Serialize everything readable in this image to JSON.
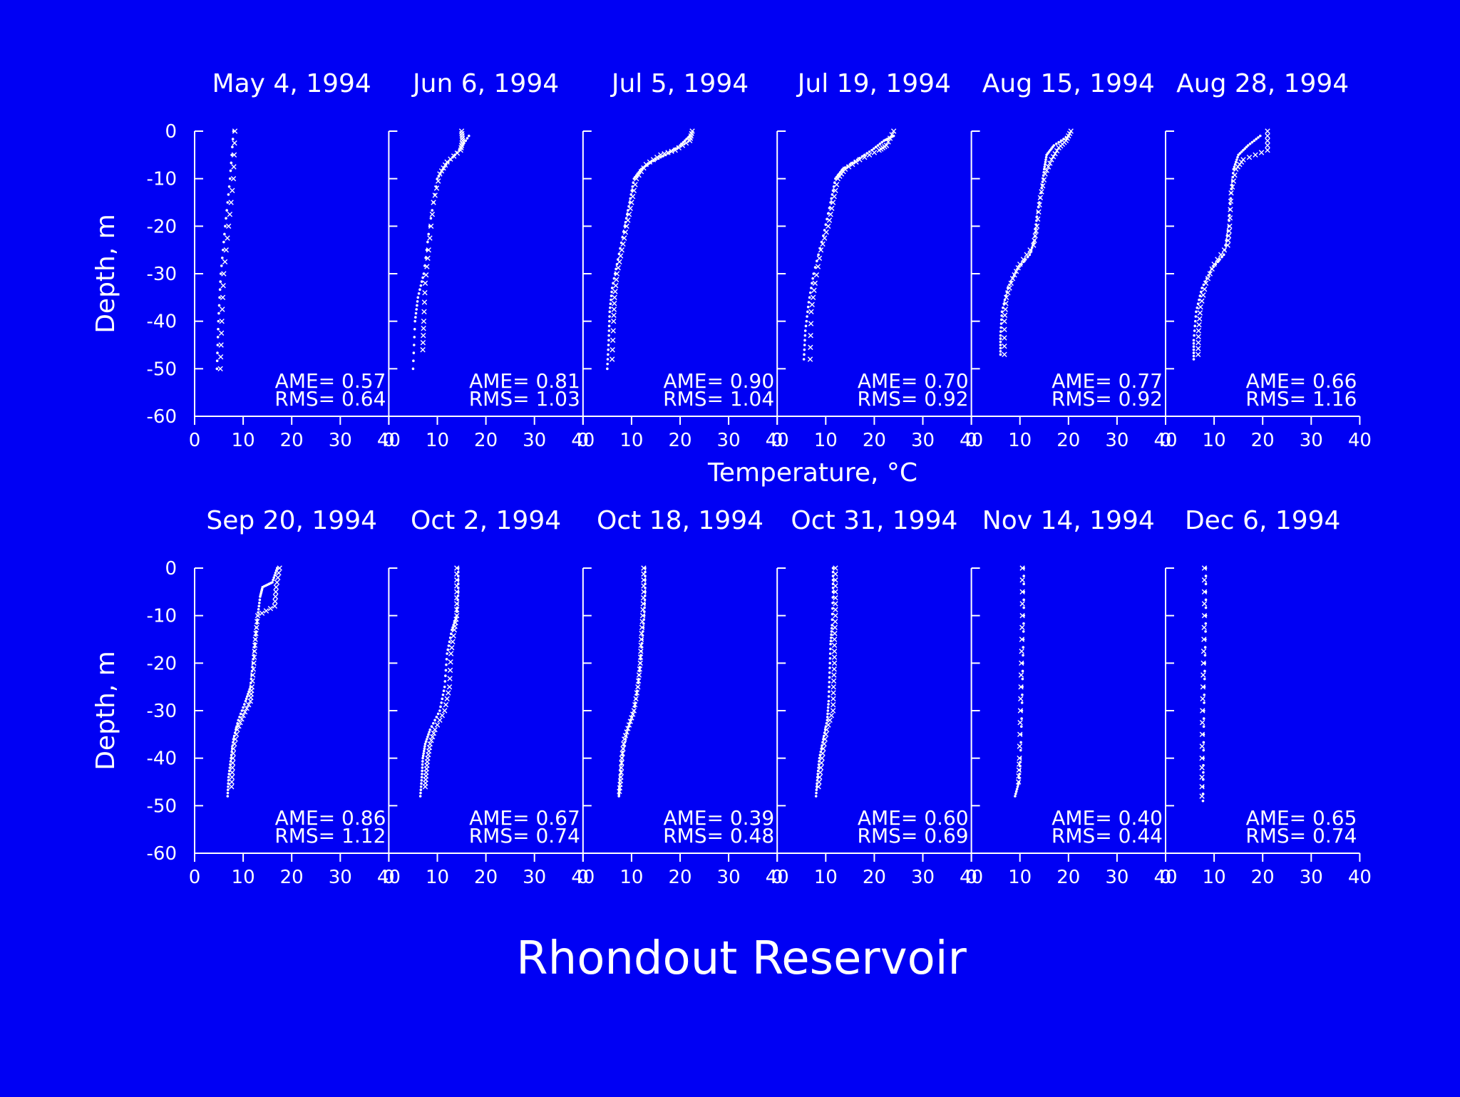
{
  "page_title": "Rhondout Reservoir",
  "colors": {
    "background": "#0000f4",
    "foreground": "#ffffff"
  },
  "chart_data": {
    "type": "scatter",
    "title": "Rhondout Reservoir",
    "xlabel": "Temperature, °C",
    "ylabel": "Depth, m",
    "xlim": [
      0,
      40
    ],
    "ylim": [
      -60,
      0
    ],
    "xticks": [
      "0",
      "10",
      "20",
      "30",
      "40"
    ],
    "yticks": [
      "0",
      "-10",
      "-20",
      "-30",
      "-40",
      "-50",
      "-60"
    ],
    "grid": false,
    "markers": {
      "observed": "x",
      "simulated": "dotted line"
    },
    "panels": [
      {
        "title": "May  4, 1994",
        "ame": "AME= 0.57",
        "rms": "RMS= 0.64",
        "observed": [
          [
            8.3,
            0
          ],
          [
            8,
            -10
          ],
          [
            7,
            -20
          ],
          [
            6,
            -30
          ],
          [
            5.6,
            -40
          ],
          [
            5.3,
            -50
          ]
        ],
        "simulated": [
          [
            8,
            0
          ],
          [
            7.3,
            -10
          ],
          [
            6.3,
            -20
          ],
          [
            5.4,
            -30
          ],
          [
            4.9,
            -40
          ],
          [
            4.6,
            -50
          ]
        ]
      },
      {
        "title": "Jun  6, 1994",
        "ame": "AME= 0.81",
        "rms": "RMS= 1.03",
        "observed": [
          [
            15,
            0
          ],
          [
            15.2,
            -2
          ],
          [
            14.8,
            -4
          ],
          [
            12,
            -6.5
          ],
          [
            10.5,
            -9
          ],
          [
            9.2,
            -15
          ],
          [
            8.2,
            -25
          ],
          [
            7.5,
            -32
          ],
          [
            7.2,
            -40
          ],
          [
            7,
            -46
          ]
        ],
        "simulated": [
          [
            16.5,
            -1
          ],
          [
            14.5,
            -4
          ],
          [
            11.8,
            -7
          ],
          [
            10,
            -10
          ],
          [
            8.4,
            -20
          ],
          [
            7.2,
            -30
          ],
          [
            6,
            -35
          ],
          [
            5.4,
            -40
          ],
          [
            5,
            -50
          ]
        ]
      },
      {
        "title": "Jul  5, 1994",
        "ame": "AME= 0.90",
        "rms": "RMS= 1.04",
        "observed": [
          [
            22.5,
            0
          ],
          [
            22,
            -2
          ],
          [
            19,
            -4
          ],
          [
            16,
            -5
          ],
          [
            13,
            -7
          ],
          [
            11,
            -10
          ],
          [
            10,
            -15
          ],
          [
            9,
            -20
          ],
          [
            8,
            -25
          ],
          [
            7,
            -30
          ],
          [
            6.5,
            -35
          ],
          [
            6.3,
            -40
          ],
          [
            6,
            -48
          ]
        ],
        "simulated": [
          [
            22,
            -1
          ],
          [
            20,
            -3
          ],
          [
            17,
            -5
          ],
          [
            14,
            -6.5
          ],
          [
            12,
            -8
          ],
          [
            10.5,
            -10
          ],
          [
            9.6,
            -15
          ],
          [
            8.6,
            -20
          ],
          [
            7.2,
            -27
          ],
          [
            6,
            -33
          ],
          [
            5.5,
            -38
          ],
          [
            5.3,
            -44
          ],
          [
            5,
            -50
          ]
        ]
      },
      {
        "title": "Jul 19, 1994",
        "ame": "AME= 0.70",
        "rms": "RMS= 0.92",
        "observed": [
          [
            24,
            0
          ],
          [
            22.5,
            -3
          ],
          [
            21,
            -4
          ],
          [
            17,
            -6
          ],
          [
            14,
            -8
          ],
          [
            12.5,
            -10
          ],
          [
            11.5,
            -15
          ],
          [
            10.5,
            -20
          ],
          [
            9,
            -25
          ],
          [
            7.8,
            -32
          ],
          [
            7,
            -38
          ],
          [
            6.8,
            -48
          ]
        ],
        "simulated": [
          [
            24,
            -1
          ],
          [
            22,
            -2
          ],
          [
            19.5,
            -4
          ],
          [
            16.5,
            -6
          ],
          [
            13.5,
            -8
          ],
          [
            12,
            -10
          ],
          [
            11,
            -15
          ],
          [
            9.5,
            -22
          ],
          [
            7.5,
            -30
          ],
          [
            6.5,
            -36
          ],
          [
            5.8,
            -42
          ],
          [
            5.5,
            -48
          ]
        ]
      },
      {
        "title": "Aug 15, 1994",
        "ame": "AME= 0.77",
        "rms": "RMS= 0.92",
        "observed": [
          [
            20.5,
            0
          ],
          [
            19.5,
            -2
          ],
          [
            18,
            -3.5
          ],
          [
            16.5,
            -6
          ],
          [
            15.2,
            -9
          ],
          [
            14.2,
            -14
          ],
          [
            13.5,
            -20
          ],
          [
            12.8,
            -24
          ],
          [
            10,
            -28
          ],
          [
            8.5,
            -31
          ],
          [
            7.2,
            -35
          ],
          [
            6.8,
            -40
          ],
          [
            6.8,
            -47
          ]
        ],
        "simulated": [
          [
            20,
            -1
          ],
          [
            17,
            -3
          ],
          [
            15.5,
            -5
          ],
          [
            15,
            -8
          ],
          [
            14.5,
            -12
          ],
          [
            13.5,
            -18
          ],
          [
            13,
            -23
          ],
          [
            12,
            -26
          ],
          [
            9.5,
            -29
          ],
          [
            7.5,
            -33
          ],
          [
            6.3,
            -38
          ],
          [
            6,
            -43
          ],
          [
            6,
            -47
          ]
        ]
      },
      {
        "title": "Aug 28, 1994",
        "ame": "AME= 0.66",
        "rms": "RMS= 1.16",
        "observed": [
          [
            21,
            0
          ],
          [
            21,
            -4
          ],
          [
            16,
            -6
          ],
          [
            14.5,
            -8
          ],
          [
            13.5,
            -13
          ],
          [
            13.2,
            -20
          ],
          [
            12.8,
            -24
          ],
          [
            10,
            -28
          ],
          [
            8.3,
            -32
          ],
          [
            7.2,
            -37
          ],
          [
            6.8,
            -42
          ],
          [
            6.7,
            -47
          ]
        ],
        "simulated": [
          [
            19.5,
            -1
          ],
          [
            17,
            -3
          ],
          [
            15,
            -5
          ],
          [
            14,
            -8
          ],
          [
            13.5,
            -13
          ],
          [
            13,
            -20
          ],
          [
            12,
            -26
          ],
          [
            9.5,
            -29
          ],
          [
            7.5,
            -33
          ],
          [
            6.3,
            -38
          ],
          [
            5.8,
            -44
          ],
          [
            5.8,
            -48
          ]
        ]
      },
      {
        "title": "Sep 20, 1994",
        "ame": "AME= 0.86",
        "rms": "RMS= 1.12",
        "observed": [
          [
            17.5,
            0
          ],
          [
            16.8,
            -4
          ],
          [
            16.5,
            -8
          ],
          [
            13,
            -10
          ],
          [
            12.5,
            -15
          ],
          [
            12.2,
            -20
          ],
          [
            11.8,
            -25
          ],
          [
            11.5,
            -28
          ],
          [
            10,
            -31
          ],
          [
            8.8,
            -34
          ],
          [
            8,
            -38
          ],
          [
            7.8,
            -42
          ],
          [
            7.6,
            -46
          ]
        ],
        "simulated": [
          [
            17,
            0
          ],
          [
            16,
            -3
          ],
          [
            14,
            -4
          ],
          [
            13.5,
            -6
          ],
          [
            13,
            -10
          ],
          [
            12.5,
            -15
          ],
          [
            12,
            -20
          ],
          [
            11.5,
            -25
          ],
          [
            10.5,
            -28
          ],
          [
            9,
            -32
          ],
          [
            8,
            -36
          ],
          [
            7.5,
            -40
          ],
          [
            7,
            -44
          ],
          [
            6.8,
            -48
          ]
        ]
      },
      {
        "title": "Oct  2, 1994",
        "ame": "AME= 0.67",
        "rms": "RMS= 0.74",
        "observed": [
          [
            14,
            0
          ],
          [
            14,
            -5
          ],
          [
            14,
            -10
          ],
          [
            13.5,
            -13
          ],
          [
            12.8,
            -18
          ],
          [
            12.5,
            -25
          ],
          [
            11.5,
            -30
          ],
          [
            9.5,
            -34
          ],
          [
            8.5,
            -37
          ],
          [
            8,
            -40
          ],
          [
            7.7,
            -43
          ],
          [
            7.5,
            -46
          ]
        ],
        "simulated": [
          [
            14.3,
            0
          ],
          [
            14.3,
            -5
          ],
          [
            14,
            -10
          ],
          [
            13,
            -13
          ],
          [
            12,
            -18
          ],
          [
            11.5,
            -25
          ],
          [
            10.5,
            -30
          ],
          [
            8.5,
            -34
          ],
          [
            7.5,
            -37
          ],
          [
            7,
            -40
          ],
          [
            6.8,
            -44
          ],
          [
            6.5,
            -48
          ]
        ]
      },
      {
        "title": "Oct 18, 1994",
        "ame": "AME= 0.39",
        "rms": "RMS= 0.48",
        "observed": [
          [
            12.5,
            0
          ],
          [
            12.5,
            -5
          ],
          [
            12.3,
            -10
          ],
          [
            12,
            -15
          ],
          [
            11.8,
            -20
          ],
          [
            11.3,
            -25
          ],
          [
            10.5,
            -30
          ],
          [
            9.5,
            -33
          ],
          [
            8.5,
            -36
          ],
          [
            8,
            -40
          ],
          [
            7.8,
            -44
          ],
          [
            7.5,
            -47
          ]
        ],
        "simulated": [
          [
            12.8,
            0
          ],
          [
            12.8,
            -5
          ],
          [
            12.6,
            -10
          ],
          [
            12.2,
            -15
          ],
          [
            11.8,
            -20
          ],
          [
            11.3,
            -25
          ],
          [
            10.5,
            -30
          ],
          [
            9.2,
            -34
          ],
          [
            8.3,
            -38
          ],
          [
            7.8,
            -42
          ],
          [
            7.5,
            -46
          ],
          [
            7.4,
            -48
          ]
        ]
      },
      {
        "title": "Oct 31, 1994",
        "ame": "AME= 0.60",
        "rms": "RMS= 0.69",
        "observed": [
          [
            12,
            0
          ],
          [
            12,
            -5
          ],
          [
            12,
            -10
          ],
          [
            11.8,
            -15
          ],
          [
            11.8,
            -20
          ],
          [
            11.6,
            -25
          ],
          [
            11.5,
            -30
          ],
          [
            10.2,
            -34
          ],
          [
            9.5,
            -38
          ],
          [
            9,
            -42
          ],
          [
            8.5,
            -46
          ]
        ],
        "simulated": [
          [
            11.5,
            0
          ],
          [
            11.5,
            -5
          ],
          [
            11.3,
            -12
          ],
          [
            11,
            -16
          ],
          [
            10.8,
            -22
          ],
          [
            10.6,
            -28
          ],
          [
            10.3,
            -32
          ],
          [
            9.5,
            -36
          ],
          [
            8.7,
            -40
          ],
          [
            8.3,
            -44
          ],
          [
            8,
            -48
          ]
        ]
      },
      {
        "title": "Nov 14, 1994",
        "ame": "AME= 0.40",
        "rms": "RMS= 0.44",
        "observed": [
          [
            10.5,
            0
          ],
          [
            10.5,
            -10
          ],
          [
            10.3,
            -20
          ],
          [
            10.1,
            -30
          ],
          [
            9.9,
            -40
          ],
          [
            9.7,
            -45
          ]
        ],
        "simulated": [
          [
            10.8,
            0
          ],
          [
            10.8,
            -10
          ],
          [
            10.6,
            -20
          ],
          [
            10.4,
            -30
          ],
          [
            10.1,
            -40
          ],
          [
            9.8,
            -45
          ],
          [
            9,
            -48
          ]
        ]
      },
      {
        "title": "Dec  6, 1994",
        "ame": "AME= 0.65",
        "rms": "RMS= 0.74",
        "observed": [
          [
            8,
            0
          ],
          [
            8,
            -10
          ],
          [
            7.8,
            -20
          ],
          [
            7.6,
            -30
          ],
          [
            7.5,
            -40
          ],
          [
            7.5,
            -48
          ]
        ],
        "simulated": [
          [
            8.3,
            0
          ],
          [
            8.3,
            -10
          ],
          [
            8.1,
            -20
          ],
          [
            7.9,
            -30
          ],
          [
            7.8,
            -40
          ],
          [
            7.7,
            -49
          ]
        ]
      }
    ]
  }
}
